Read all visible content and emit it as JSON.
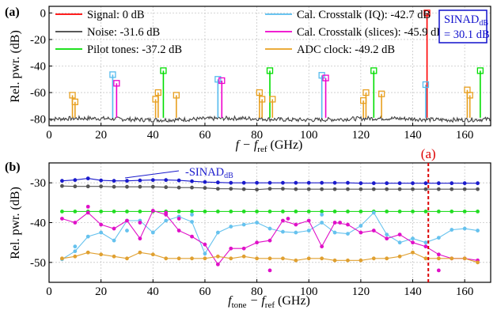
{
  "chart_data": [
    {
      "type": "line",
      "panel_label": "(a)",
      "xlabel_main": "f − f",
      "xlabel_sub": "ref",
      "xlabel_unit": "(GHz)",
      "ylabel": "Rel. pwr. (dB)",
      "xlim": [
        0,
        170
      ],
      "ylim": [
        -85,
        5
      ],
      "xticks": [
        0,
        20,
        40,
        60,
        80,
        100,
        120,
        140,
        160
      ],
      "yticks": [
        -80,
        -60,
        -40,
        -20,
        0
      ],
      "grid": true,
      "legend": [
        {
          "label": "Signal: 0 dB",
          "color": "#ff0000"
        },
        {
          "label": "Noise: -31.6 dB",
          "color": "#404040"
        },
        {
          "label": "Pilot tones: -37.2 dB",
          "color": "#00dd00"
        },
        {
          "label": "Cal. Crosstalk (IQ): -42.7 dB",
          "color": "#55bbee"
        },
        {
          "label": "Cal. Crosstalk (slices): -45.9 dB",
          "color": "#ee00cc"
        },
        {
          "label": "ADC clock: -49.2 dB",
          "color": "#e8a020"
        }
      ],
      "sinad_box": {
        "line1": "SINAD",
        "line1_sub": "dB",
        "line2": "= 30.1 dB"
      },
      "noise_floor": -80,
      "series": [
        {
          "name": "Signal",
          "color": "#ff0000",
          "x": [
            145.5
          ],
          "y": [
            0
          ]
        },
        {
          "name": "Pilot tones",
          "color": "#00dd00",
          "x": [
            44,
            85,
            125,
            166
          ],
          "y": [
            -43.5,
            -43.5,
            -43.5,
            -43.5
          ]
        },
        {
          "name": "Cal. Crosstalk (IQ)",
          "color": "#55bbee",
          "x": [
            24.5,
            65,
            105,
            145
          ],
          "y": [
            -46.5,
            -50,
            -47,
            -54
          ]
        },
        {
          "name": "Cal. Crosstalk (slices)",
          "color": "#ee00cc",
          "x": [
            26,
            66.5,
            106.5
          ],
          "y": [
            -53,
            -51,
            -49
          ]
        },
        {
          "name": "ADC clock",
          "color": "#e8a020",
          "x": [
            9,
            10,
            41,
            42,
            49,
            81,
            82,
            86,
            121,
            122,
            128,
            161,
            162
          ],
          "y": [
            -62,
            -67,
            -65,
            -60,
            -62,
            -60,
            -65,
            -65,
            -66,
            -60,
            -61,
            -58,
            -62
          ]
        }
      ]
    },
    {
      "type": "line",
      "panel_label": "(b)",
      "xlabel_main": "f",
      "xlabel_sub1": "tone",
      "xlabel_mid": " − f",
      "xlabel_sub2": "ref",
      "xlabel_unit": "(GHz)",
      "ylabel": "Rel. pwr. (dB)",
      "xlim": [
        0,
        170
      ],
      "ylim": [
        -55,
        -25
      ],
      "xticks": [
        0,
        20,
        40,
        60,
        80,
        100,
        120,
        140,
        160
      ],
      "yticks": [
        -50,
        -40,
        -30
      ],
      "grid": true,
      "annotation_text": "(a)",
      "annotation_x": 146,
      "sinad_label": "-SINAD",
      "sinad_label_sub": "dB",
      "x": [
        5,
        10,
        15,
        20,
        25,
        30,
        35,
        40,
        45,
        50,
        55,
        60,
        65,
        70,
        75,
        80,
        85,
        90,
        95,
        100,
        105,
        110,
        115,
        120,
        125,
        130,
        135,
        140,
        145,
        150,
        155,
        160,
        165
      ],
      "series": [
        {
          "name": "-SINAD",
          "color": "#1a1acc",
          "values": [
            -29.5,
            -29.3,
            -28.9,
            -29.4,
            -29.5,
            -29.5,
            -29.4,
            -29.3,
            -29.3,
            -29.4,
            -29.6,
            -29.8,
            -29.9,
            -30.0,
            -30.0,
            -30.0,
            -30.0,
            -30.0,
            -30.0,
            -30.0,
            -30.0,
            -30.0,
            -30.0,
            -30.1,
            -30.1,
            -30.1,
            -30.1,
            -30.1,
            -30.1,
            -30.1,
            -30.1,
            -30.1,
            -30.1
          ]
        },
        {
          "name": "Noise",
          "color": "#555555",
          "values": [
            -30.8,
            -30.9,
            -30.9,
            -30.9,
            -31.0,
            -31.0,
            -31.0,
            -31.0,
            -31.1,
            -31.2,
            -31.2,
            -31.3,
            -31.5,
            -31.5,
            -31.6,
            -31.7,
            -31.5,
            -31.5,
            -31.6,
            -31.6,
            -31.6,
            -31.6,
            -31.6,
            -31.6,
            -31.6,
            -31.6,
            -31.6,
            -31.6,
            -31.6,
            -31.6,
            -31.6,
            -31.6,
            -31.6
          ]
        },
        {
          "name": "Pilot tones",
          "color": "#22dd22",
          "values": [
            -37.2,
            -37.2,
            -37.2,
            -37.2,
            -37.2,
            -37.2,
            -37.2,
            -37.2,
            -37.2,
            -37.2,
            -37.2,
            -37.2,
            -37.2,
            -37.2,
            -37.2,
            -37.2,
            -37.2,
            -37.2,
            -37.2,
            -37.2,
            -37.2,
            -37.2,
            -37.2,
            -37.2,
            -37.2,
            -37.2,
            -37.2,
            -37.2,
            -37.2,
            -37.2,
            -37.2,
            -37.2,
            -37.2
          ]
        },
        {
          "name": "Cal. Crosstalk (IQ)",
          "color": "#66c2ee",
          "values": [
            -49.2,
            -47.2,
            -43.5,
            -42.5,
            -44.5,
            -39.5,
            -39.5,
            -42.5,
            -39.5,
            -38.5,
            -39.8,
            -47.8,
            -42.5,
            -41.0,
            -40.5,
            -40.0,
            -41.5,
            -42.3,
            -42.5,
            -42.0,
            -40.0,
            -42.5,
            -42.8,
            -40.8,
            -37.5,
            -43.0,
            -45.0,
            -44.0,
            -45.0,
            -43.8,
            -41.8,
            -41.5,
            -42.0
          ]
        },
        {
          "name": "Cal. Crosstalk (slices)",
          "color": "#e010c8",
          "values": [
            -39.0,
            -40.0,
            -37.5,
            -40.5,
            -41.5,
            -39.5,
            -44.0,
            -37.0,
            -38.0,
            -42.0,
            -43.5,
            -45.5,
            -50.5,
            -46.5,
            -46.5,
            -45.0,
            -44.5,
            -39.5,
            -40.5,
            -39.5,
            -46.0,
            -40.0,
            -40.5,
            -42.5,
            -42.0,
            -44.0,
            -43.0,
            -45.0,
            -46.0,
            -48.0,
            -49.0,
            -49.0,
            -49.5
          ]
        },
        {
          "name": "ADC clock",
          "color": "#e0a030",
          "values": [
            -49.0,
            -48.5,
            -47.5,
            -48.0,
            -48.5,
            -49.0,
            -47.5,
            -48.0,
            -49.0,
            -49.0,
            -49.0,
            -49.0,
            -48.5,
            -49.0,
            -48.5,
            -49.0,
            -49.0,
            -49.0,
            -49.5,
            -49.0,
            -49.0,
            -49.5,
            -49.5,
            -49.5,
            -49.0,
            -49.0,
            -48.5,
            -47.5,
            -49.0,
            -49.0,
            -49.0,
            -49.0,
            -50.0
          ]
        }
      ],
      "scatter_extra": [
        {
          "color": "#e010c8",
          "x": [
            15,
            35,
            45,
            50,
            85,
            92,
            112,
            150
          ],
          "y": [
            -36,
            -40,
            -37.5,
            -39,
            -52,
            -39,
            -40,
            -52
          ]
        },
        {
          "color": "#66c2ee",
          "x": [
            10,
            30,
            55,
            105
          ],
          "y": [
            -46,
            -42,
            -38,
            -38
          ]
        }
      ]
    }
  ]
}
